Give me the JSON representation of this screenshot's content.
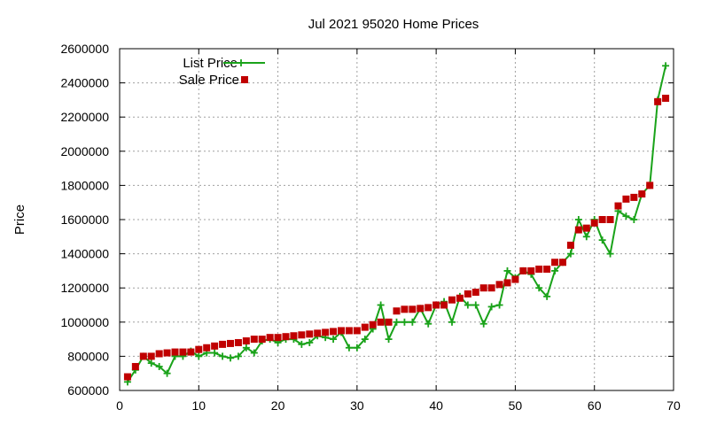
{
  "chart_data": {
    "type": "line",
    "title": "Jul 2021 95020 Home Prices",
    "xlabel": "",
    "ylabel": "Price",
    "xlim": [
      0,
      70
    ],
    "ylim": [
      600000,
      2600000
    ],
    "xticks": [
      0,
      10,
      20,
      30,
      40,
      50,
      60,
      70
    ],
    "yticks": [
      600000,
      800000,
      1000000,
      1200000,
      1400000,
      1600000,
      1800000,
      2000000,
      2200000,
      2400000,
      2600000
    ],
    "grid": true,
    "legend_position": "top-left",
    "series": [
      {
        "name": "List Price",
        "style": "line-plus",
        "color": "#1aa31a",
        "x": [
          1,
          2,
          3,
          4,
          5,
          6,
          7,
          8,
          9,
          10,
          11,
          12,
          13,
          14,
          15,
          16,
          17,
          18,
          19,
          20,
          21,
          22,
          23,
          24,
          25,
          26,
          27,
          28,
          29,
          30,
          31,
          32,
          33,
          34,
          35,
          36,
          37,
          38,
          39,
          40,
          41,
          42,
          43,
          44,
          45,
          46,
          47,
          48,
          49,
          50,
          51,
          52,
          53,
          54,
          55,
          56,
          57,
          58,
          59,
          60,
          61,
          62,
          63,
          64,
          65,
          66,
          67,
          68,
          69
        ],
        "values": [
          650000,
          720000,
          800000,
          760000,
          740000,
          700000,
          800000,
          800000,
          830000,
          800000,
          820000,
          820000,
          800000,
          790000,
          800000,
          850000,
          820000,
          890000,
          900000,
          880000,
          900000,
          900000,
          870000,
          880000,
          920000,
          910000,
          900000,
          940000,
          850000,
          850000,
          900000,
          960000,
          1100000,
          900000,
          1000000,
          1000000,
          1000000,
          1080000,
          990000,
          1100000,
          1120000,
          1000000,
          1150000,
          1100000,
          1100000,
          990000,
          1090000,
          1100000,
          1300000,
          1260000,
          1300000,
          1280000,
          1200000,
          1150000,
          1300000,
          1350000,
          1400000,
          1600000,
          1500000,
          1600000,
          1480000,
          1400000,
          1650000,
          1620000,
          1600000,
          1750000,
          1800000,
          2300000,
          2500000
        ]
      },
      {
        "name": "Sale Price",
        "style": "square-points",
        "color": "#c00000",
        "x": [
          1,
          2,
          3,
          4,
          5,
          6,
          7,
          8,
          9,
          10,
          11,
          12,
          13,
          14,
          15,
          16,
          17,
          18,
          19,
          20,
          21,
          22,
          23,
          24,
          25,
          26,
          27,
          28,
          29,
          30,
          31,
          32,
          33,
          34,
          35,
          36,
          37,
          38,
          39,
          40,
          41,
          42,
          43,
          44,
          45,
          46,
          47,
          48,
          49,
          50,
          51,
          52,
          53,
          54,
          55,
          56,
          57,
          58,
          59,
          60,
          61,
          62,
          63,
          64,
          65,
          66,
          67,
          68,
          69
        ],
        "values": [
          680000,
          740000,
          800000,
          800000,
          815000,
          820000,
          825000,
          825000,
          825000,
          840000,
          850000,
          860000,
          870000,
          875000,
          880000,
          890000,
          900000,
          900000,
          910000,
          910000,
          915000,
          920000,
          925000,
          930000,
          935000,
          940000,
          945000,
          950000,
          950000,
          950000,
          970000,
          985000,
          1000000,
          1000000,
          1065000,
          1075000,
          1075000,
          1080000,
          1085000,
          1100000,
          1100000,
          1130000,
          1140000,
          1165000,
          1175000,
          1200000,
          1200000,
          1220000,
          1230000,
          1250000,
          1300000,
          1300000,
          1310000,
          1310000,
          1350000,
          1350000,
          1450000,
          1540000,
          1550000,
          1580000,
          1600000,
          1600000,
          1680000,
          1720000,
          1730000,
          1750000,
          1800000,
          2290000,
          2310000
        ]
      }
    ]
  }
}
